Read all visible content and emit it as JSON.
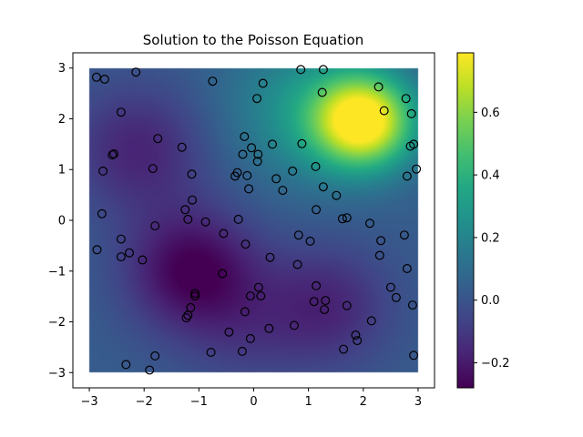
{
  "chart_data": {
    "type": "heatmap",
    "title": "Solution to the Poisson Equation",
    "xlabel": "",
    "ylabel": "",
    "xlim": [
      -3.3,
      3.3
    ],
    "ylim": [
      -3.3,
      3.3
    ],
    "field_extent": [
      -3,
      3,
      -3,
      3
    ],
    "xticks": [
      -3,
      -2,
      -1,
      0,
      1,
      2,
      3
    ],
    "yticks": [
      -3,
      -2,
      -1,
      0,
      1,
      2,
      3
    ],
    "colormap": "viridis",
    "colorbar": {
      "min": -0.28,
      "max": 0.79,
      "ticks": [
        -0.2,
        0.0,
        0.2,
        0.4,
        0.6
      ],
      "tick_labels": [
        "−0.2",
        "0.0",
        "0.2",
        "0.4",
        "0.6"
      ]
    },
    "field_features": [
      {
        "kind": "peak",
        "x": 2.0,
        "y": 1.95,
        "value": 0.79
      },
      {
        "kind": "trough",
        "x": -1.1,
        "y": -1.0,
        "value": -0.28
      },
      {
        "kind": "trough",
        "x": -2.1,
        "y": 1.4,
        "value": -0.18
      },
      {
        "kind": "trough",
        "x": 1.3,
        "y": -1.7,
        "value": -0.19
      }
    ],
    "markers": {
      "style": "hollow-circle",
      "edge_color": "#000000",
      "points": [
        [
          -2.87,
          2.82
        ],
        [
          -2.72,
          2.78
        ],
        [
          -2.15,
          2.92
        ],
        [
          -0.75,
          2.74
        ],
        [
          0.17,
          2.7
        ],
        [
          0.86,
          2.97
        ],
        [
          1.27,
          2.97
        ],
        [
          2.28,
          2.63
        ],
        [
          2.78,
          2.4
        ],
        [
          1.25,
          2.52
        ],
        [
          0.06,
          2.4
        ],
        [
          -2.42,
          2.13
        ],
        [
          2.38,
          2.16
        ],
        [
          2.88,
          2.1
        ],
        [
          -0.17,
          1.65
        ],
        [
          -1.75,
          1.61
        ],
        [
          0.34,
          1.5
        ],
        [
          0.88,
          1.51
        ],
        [
          2.92,
          1.5
        ],
        [
          2.86,
          1.46
        ],
        [
          -2.55,
          1.31
        ],
        [
          -2.58,
          1.29
        ],
        [
          -1.31,
          1.44
        ],
        [
          -0.2,
          1.3
        ],
        [
          -0.04,
          1.43
        ],
        [
          0.08,
          1.3
        ],
        [
          0.07,
          1.16
        ],
        [
          -2.75,
          0.97
        ],
        [
          -1.84,
          1.02
        ],
        [
          -1.13,
          0.91
        ],
        [
          -0.34,
          0.87
        ],
        [
          -0.3,
          0.94
        ],
        [
          -0.12,
          0.88
        ],
        [
          0.71,
          0.97
        ],
        [
          1.13,
          1.06
        ],
        [
          2.97,
          1.01
        ],
        [
          -0.09,
          0.62
        ],
        [
          0.41,
          0.82
        ],
        [
          0.53,
          0.59
        ],
        [
          1.27,
          0.66
        ],
        [
          1.51,
          0.49
        ],
        [
          2.8,
          0.87
        ],
        [
          -1.12,
          0.4
        ],
        [
          -1.25,
          0.21
        ],
        [
          -2.77,
          0.13
        ],
        [
          -1.2,
          0.02
        ],
        [
          -0.88,
          -0.03
        ],
        [
          -0.28,
          0.02
        ],
        [
          1.14,
          0.21
        ],
        [
          1.62,
          0.03
        ],
        [
          1.7,
          0.05
        ],
        [
          2.12,
          -0.06
        ],
        [
          -1.8,
          -0.11
        ],
        [
          -0.55,
          -0.26
        ],
        [
          -0.15,
          -0.47
        ],
        [
          0.82,
          -0.29
        ],
        [
          1.03,
          -0.41
        ],
        [
          2.75,
          -0.29
        ],
        [
          2.32,
          -0.4
        ],
        [
          -2.42,
          -0.37
        ],
        [
          -2.86,
          -0.58
        ],
        [
          -2.27,
          -0.64
        ],
        [
          -2.42,
          -0.72
        ],
        [
          -2.03,
          -0.78
        ],
        [
          0.3,
          -0.73
        ],
        [
          2.3,
          -0.69
        ],
        [
          0.8,
          -0.87
        ],
        [
          2.8,
          -0.95
        ],
        [
          -0.57,
          -1.05
        ],
        [
          -1.07,
          -1.44
        ],
        [
          -1.07,
          -1.49
        ],
        [
          0.09,
          -1.32
        ],
        [
          0.13,
          -1.49
        ],
        [
          -0.06,
          -1.49
        ],
        [
          1.14,
          -1.29
        ],
        [
          2.5,
          -1.32
        ],
        [
          2.6,
          -1.52
        ],
        [
          1.31,
          -1.58
        ],
        [
          1.1,
          -1.6
        ],
        [
          2.9,
          -1.67
        ],
        [
          -1.15,
          -1.72
        ],
        [
          -1.2,
          -1.87
        ],
        [
          -1.23,
          -1.92
        ],
        [
          -0.16,
          -1.8
        ],
        [
          1.29,
          -1.76
        ],
        [
          1.7,
          -1.68
        ],
        [
          2.15,
          -1.98
        ],
        [
          0.74,
          -2.07
        ],
        [
          0.28,
          -2.13
        ],
        [
          -0.45,
          -2.2
        ],
        [
          -0.06,
          -2.33
        ],
        [
          1.86,
          -2.26
        ],
        [
          1.89,
          -2.37
        ],
        [
          -1.8,
          -2.67
        ],
        [
          -0.78,
          -2.6
        ],
        [
          -0.21,
          -2.58
        ],
        [
          1.64,
          -2.54
        ],
        [
          2.92,
          -2.66
        ],
        [
          -2.33,
          -2.84
        ],
        [
          -1.9,
          -2.95
        ]
      ]
    }
  }
}
